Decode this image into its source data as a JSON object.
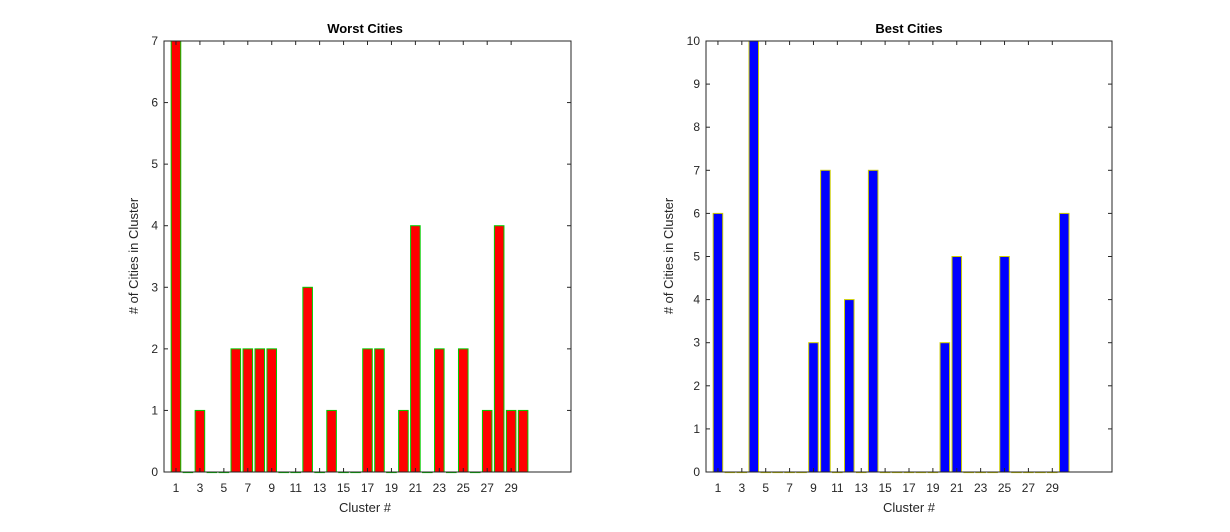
{
  "chart_data": [
    {
      "type": "bar",
      "title": "Worst Cities",
      "xlabel": "Cluster #",
      "ylabel": "# of Cities in Cluster",
      "x": [
        1,
        2,
        3,
        4,
        5,
        6,
        7,
        8,
        9,
        10,
        11,
        12,
        13,
        14,
        15,
        16,
        17,
        18,
        19,
        20,
        21,
        22,
        23,
        24,
        25,
        26,
        27,
        28,
        29,
        30
      ],
      "values": [
        7,
        0,
        1,
        0,
        0,
        2,
        2,
        2,
        2,
        0,
        0,
        3,
        0,
        1,
        0,
        0,
        2,
        2,
        0,
        1,
        4,
        0,
        2,
        0,
        2,
        0,
        1,
        4,
        1,
        1
      ],
      "xlim": [
        0,
        34
      ],
      "ylim": [
        0,
        7
      ],
      "xticks": [
        1,
        3,
        5,
        7,
        9,
        11,
        13,
        15,
        17,
        19,
        21,
        23,
        25,
        27,
        29
      ],
      "yticks": [
        0,
        1,
        2,
        3,
        4,
        5,
        6,
        7
      ],
      "bar_color": "#ff0000",
      "edge_color": "#00cc00",
      "grid": false
    },
    {
      "type": "bar",
      "title": "Best Cities",
      "xlabel": "Cluster #",
      "ylabel": "# of Cities in Cluster",
      "x": [
        1,
        2,
        3,
        4,
        5,
        6,
        7,
        8,
        9,
        10,
        11,
        12,
        13,
        14,
        15,
        16,
        17,
        18,
        19,
        20,
        21,
        22,
        23,
        24,
        25,
        26,
        27,
        28,
        29,
        30
      ],
      "values": [
        6,
        0,
        0,
        10,
        0,
        0,
        0,
        0,
        3,
        7,
        0,
        4,
        0,
        7,
        0,
        0,
        0,
        0,
        0,
        3,
        5,
        0,
        0,
        0,
        5,
        0,
        0,
        0,
        0,
        6
      ],
      "xlim": [
        0,
        34
      ],
      "ylim": [
        0,
        10
      ],
      "xticks": [
        1,
        3,
        5,
        7,
        9,
        11,
        13,
        15,
        17,
        19,
        21,
        23,
        25,
        27,
        29
      ],
      "yticks": [
        0,
        1,
        2,
        3,
        4,
        5,
        6,
        7,
        8,
        9,
        10
      ],
      "bar_color": "#0000ff",
      "edge_color": "#cccc00",
      "grid": false
    }
  ]
}
